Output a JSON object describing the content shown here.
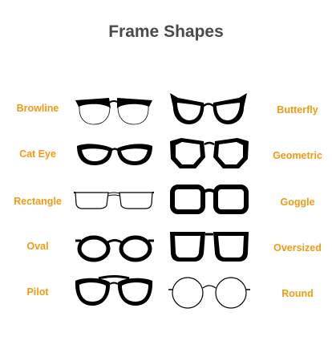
{
  "title": "Frame Shapes",
  "colors": {
    "title": "#4a4a4a",
    "label": "#f29a13",
    "frame": "#000000"
  },
  "left_column": [
    {
      "label": "Browline",
      "icon": "browline-glasses-icon"
    },
    {
      "label": "Cat Eye",
      "icon": "cat-eye-glasses-icon"
    },
    {
      "label": "Rectangle",
      "icon": "rectangle-glasses-icon"
    },
    {
      "label": "Oval",
      "icon": "oval-glasses-icon"
    },
    {
      "label": "Pilot",
      "icon": "pilot-glasses-icon"
    }
  ],
  "right_column": [
    {
      "label": "Butterfly",
      "icon": "butterfly-glasses-icon"
    },
    {
      "label": "Geometric",
      "icon": "geometric-glasses-icon"
    },
    {
      "label": "Goggle",
      "icon": "goggle-glasses-icon"
    },
    {
      "label": "Oversized",
      "icon": "oversized-glasses-icon"
    },
    {
      "label": "Round",
      "icon": "round-glasses-icon"
    }
  ]
}
